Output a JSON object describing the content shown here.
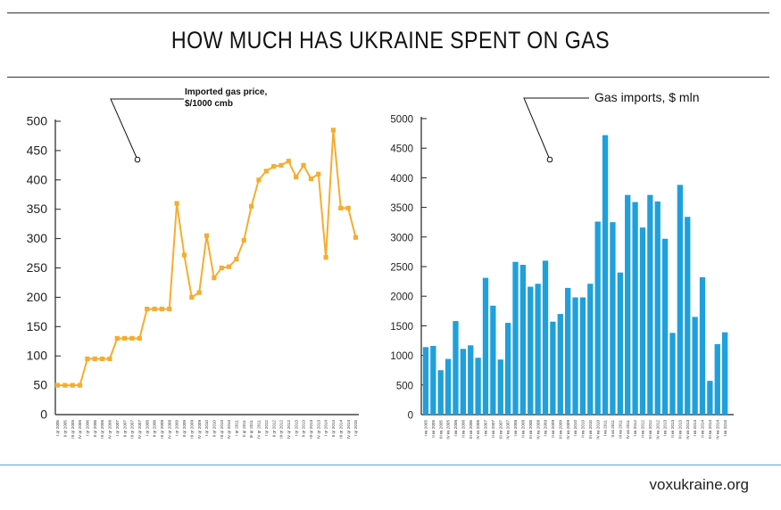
{
  "title": "HOW MUCH HAS UKRAINE SPENT ON GAS",
  "footer": "voxukraine.org",
  "colors": {
    "line": "#f5ad2f",
    "bar": "#1fa0db",
    "axis": "#222222",
    "footer_rule": "#5aa7d6"
  },
  "chart_data": [
    {
      "type": "line",
      "annotation": "Imported gas price,\n$/1000 cmb",
      "xlabel": "",
      "ylabel": "",
      "ylim": [
        0,
        500
      ],
      "yticks": [
        0,
        50,
        100,
        150,
        200,
        250,
        300,
        350,
        400,
        450,
        500
      ],
      "categories": [
        "I qr 2005",
        "II qr 2005",
        "III qr 2005",
        "IV qr 2005",
        "I qr 2006",
        "II qr 2006",
        "III qr 2006",
        "IV qr 2006",
        "I qr 2007",
        "II qr 2007",
        "III qr 2007",
        "IV qr 2007",
        "I qr 2008",
        "II qr 2008",
        "III qr 2008",
        "IV qr 2008",
        "I qr 2009",
        "II qr 2009",
        "III qr 2009",
        "IV qr 2009",
        "I qr 2010",
        "II qr 2010",
        "III qr 2010",
        "IV qr 2010",
        "I qr 2011",
        "II qr 2011",
        "III qr 2011",
        "IV qr 2011",
        "I qr 2012",
        "II qr 2012",
        "III qr 2012",
        "IV qr 2012",
        "I qr 2013",
        "II qr 2013",
        "III qr 2013",
        "IV qr 2013",
        "I qr 2014",
        "II qr 2014",
        "III qr 2014",
        "IV qr 2014",
        "I qr 2015"
      ],
      "values": [
        50,
        50,
        50,
        50,
        95,
        95,
        95,
        95,
        130,
        130,
        130,
        130,
        180,
        180,
        180,
        180,
        360,
        272,
        200,
        208,
        305,
        233,
        250,
        252,
        265,
        297,
        355,
        400,
        415,
        423,
        425,
        432,
        405,
        425,
        402,
        410,
        268,
        485,
        352,
        352,
        302
      ]
    },
    {
      "type": "bar",
      "annotation": "Gas imports, $ mln",
      "xlabel": "",
      "ylabel": "",
      "ylim": [
        0,
        5000
      ],
      "yticks": [
        0,
        500,
        1000,
        1500,
        2000,
        2500,
        3000,
        3500,
        4000,
        4500,
        5000
      ],
      "categories": [
        "I кв 2005",
        "II кв 2005",
        "III кв 2005",
        "IV кв 2005",
        "I кв 2006",
        "II кв 2006",
        "III кв 2006",
        "IV кв 2006",
        "I кв 2007",
        "II кв 2007",
        "III кв 2007",
        "IV кв 2007",
        "I кв 2008",
        "II кв 2008",
        "III кв 2008",
        "IV кв 2008",
        "I кв 2009",
        "II кв 2009",
        "III кв 2009",
        "IV кв 2009",
        "I кв 2010",
        "II кв 2010",
        "III кв 2010",
        "IV кв 2010",
        "I кв 2011",
        "II кв 2011",
        "III кв 2011",
        "IV кв 2011",
        "I кв 2012",
        "II кв 2012",
        "III кв 2012",
        "IV кв 2012",
        "I кв 2013",
        "II кв 2013",
        "III кв 2013",
        "IV кв 2013",
        "I кв 2014",
        "II кв 2014",
        "III кв 2014",
        "IV кв 2014",
        "I кв 2015"
      ],
      "values": [
        1140,
        1160,
        750,
        940,
        1580,
        1110,
        1170,
        960,
        2310,
        1840,
        930,
        1550,
        2580,
        2530,
        2160,
        2210,
        2600,
        1570,
        1700,
        2140,
        1980,
        1980,
        2210,
        3260,
        4720,
        3250,
        2400,
        3710,
        3590,
        3160,
        3710,
        3600,
        2970,
        1380,
        3880,
        3340,
        1650,
        2320,
        570,
        1190,
        1390
      ]
    }
  ]
}
